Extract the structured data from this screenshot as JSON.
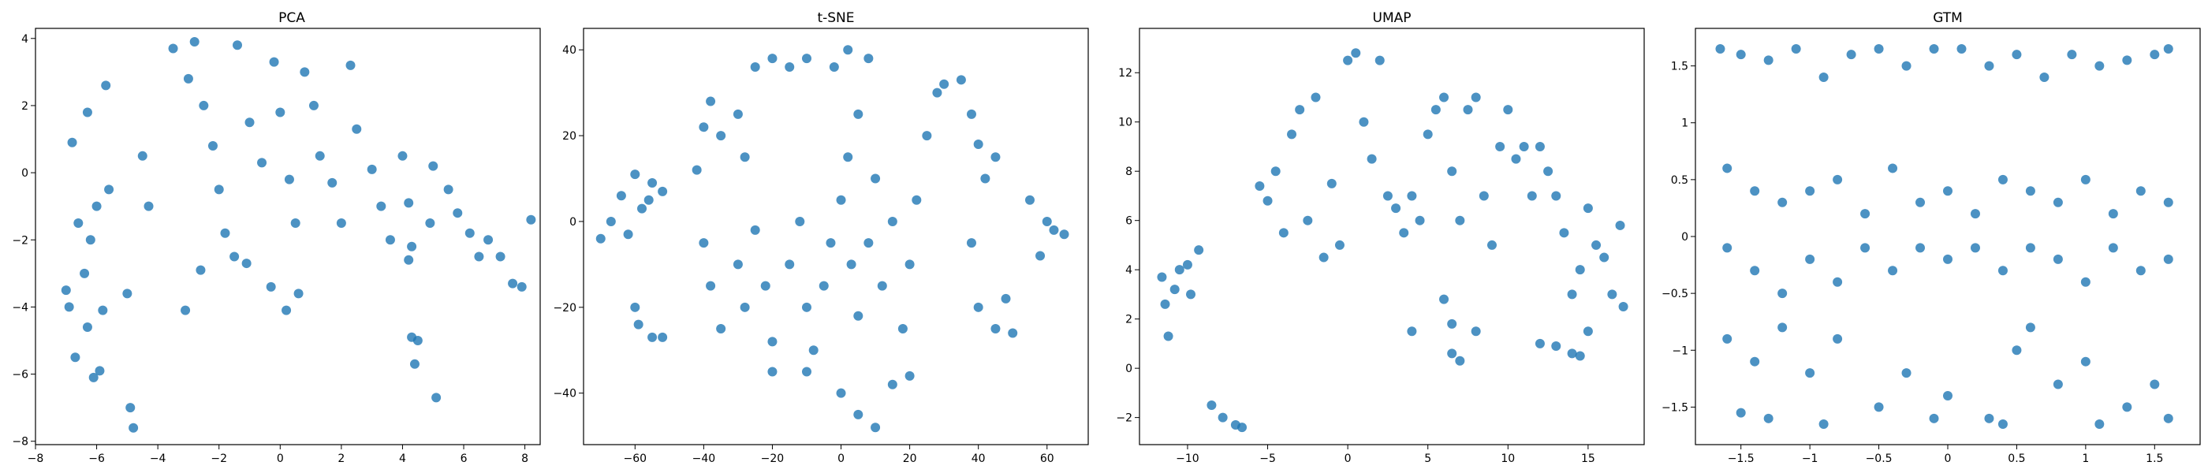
{
  "figure": {
    "background": "#ffffff"
  },
  "style": {
    "point_color": "#1f77b4",
    "point_opacity": 0.8,
    "frame_color": "#000000"
  },
  "chart_data": [
    {
      "type": "scatter",
      "title": "PCA",
      "xlabel": "",
      "ylabel": "",
      "xlim": [
        -8,
        8.5
      ],
      "ylim": [
        -8.1,
        4.3
      ],
      "xticks": [
        -8,
        -6,
        -4,
        -2,
        0,
        2,
        4,
        6,
        8
      ],
      "yticks": [
        -8,
        -6,
        -4,
        -2,
        0,
        2,
        4
      ],
      "grid": false,
      "legend": "none",
      "points": [
        [
          -6.9,
          -4
        ],
        [
          -7,
          -3.5
        ],
        [
          -6.7,
          -5.5
        ],
        [
          -6.1,
          -6.1
        ],
        [
          -5.9,
          -5.9
        ],
        [
          -6.4,
          -3
        ],
        [
          -6.2,
          -2
        ],
        [
          -6,
          -1
        ],
        [
          -5.6,
          -0.5
        ],
        [
          -6.8,
          0.9
        ],
        [
          -5.7,
          2.6
        ],
        [
          -6.3,
          1.8
        ],
        [
          -4.9,
          -7
        ],
        [
          -4.8,
          -7.6
        ],
        [
          -5,
          -3.6
        ],
        [
          -4.3,
          -1
        ],
        [
          -4.5,
          0.5
        ],
        [
          -3.5,
          3.7
        ],
        [
          -3,
          2.8
        ],
        [
          -2.8,
          3.9
        ],
        [
          -2.5,
          2
        ],
        [
          -2.2,
          0.8
        ],
        [
          -2,
          -0.5
        ],
        [
          -1.8,
          -1.8
        ],
        [
          -1.5,
          -2.5
        ],
        [
          -1.4,
          3.8
        ],
        [
          -1,
          1.5
        ],
        [
          -0.6,
          0.3
        ],
        [
          -0.2,
          3.3
        ],
        [
          0,
          1.8
        ],
        [
          0.3,
          -0.2
        ],
        [
          0.5,
          -1.5
        ],
        [
          0.8,
          3
        ],
        [
          1.1,
          2
        ],
        [
          1.3,
          0.5
        ],
        [
          1.7,
          -0.3
        ],
        [
          2,
          -1.5
        ],
        [
          2.3,
          3.2
        ],
        [
          2.5,
          1.3
        ],
        [
          3,
          0.1
        ],
        [
          3.3,
          -1
        ],
        [
          3.6,
          -2
        ],
        [
          4,
          0.5
        ],
        [
          4.2,
          -0.9
        ],
        [
          4.3,
          -2.2
        ],
        [
          4.2,
          -2.6
        ],
        [
          4.3,
          -4.9
        ],
        [
          4.5,
          -5
        ],
        [
          4.4,
          -5.7
        ],
        [
          5.1,
          -6.7
        ],
        [
          4.9,
          -1.5
        ],
        [
          5,
          0.2
        ],
        [
          5.5,
          -0.5
        ],
        [
          5.8,
          -1.2
        ],
        [
          6.2,
          -1.8
        ],
        [
          6.5,
          -2.5
        ],
        [
          6.8,
          -2
        ],
        [
          7.2,
          -2.5
        ],
        [
          7.6,
          -3.3
        ],
        [
          7.9,
          -3.4
        ],
        [
          8.2,
          -1.4
        ],
        [
          -3.1,
          -4.1
        ],
        [
          -2.6,
          -2.9
        ],
        [
          -1.1,
          -2.7
        ],
        [
          -0.3,
          -3.4
        ],
        [
          0.2,
          -4.1
        ],
        [
          0.6,
          -3.6
        ],
        [
          -6.3,
          -4.6
        ],
        [
          -5.8,
          -4.1
        ],
        [
          -6.6,
          -1.5
        ]
      ]
    },
    {
      "type": "scatter",
      "title": "t-SNE",
      "xlabel": "",
      "ylabel": "",
      "xlim": [
        -75,
        72
      ],
      "ylim": [
        -52,
        45
      ],
      "xticks": [
        -60,
        -40,
        -20,
        0,
        20,
        40,
        60
      ],
      "yticks": [
        -40,
        -20,
        0,
        20,
        40
      ],
      "grid": false,
      "legend": "none",
      "points": [
        [
          -70,
          -4
        ],
        [
          -67,
          0
        ],
        [
          -64,
          6
        ],
        [
          -60,
          11
        ],
        [
          -55,
          9
        ],
        [
          -58,
          3
        ],
        [
          -62,
          -3
        ],
        [
          -56,
          5
        ],
        [
          -52,
          7
        ],
        [
          -60,
          -20
        ],
        [
          -59,
          -24
        ],
        [
          -55,
          -27
        ],
        [
          -52,
          -27
        ],
        [
          -42,
          12
        ],
        [
          -40,
          22
        ],
        [
          -38,
          28
        ],
        [
          -35,
          20
        ],
        [
          -30,
          25
        ],
        [
          -28,
          15
        ],
        [
          -25,
          36
        ],
        [
          -20,
          38
        ],
        [
          -15,
          36
        ],
        [
          -10,
          38
        ],
        [
          -40,
          -5
        ],
        [
          -38,
          -15
        ],
        [
          -35,
          -25
        ],
        [
          -30,
          -10
        ],
        [
          -28,
          -20
        ],
        [
          -25,
          -2
        ],
        [
          -22,
          -15
        ],
        [
          -20,
          -28
        ],
        [
          -15,
          -10
        ],
        [
          -12,
          0
        ],
        [
          -10,
          -20
        ],
        [
          -8,
          -30
        ],
        [
          -5,
          -15
        ],
        [
          -3,
          -5
        ],
        [
          0,
          5
        ],
        [
          2,
          15
        ],
        [
          5,
          25
        ],
        [
          8,
          38
        ],
        [
          2,
          40
        ],
        [
          -2,
          36
        ],
        [
          3,
          -10
        ],
        [
          5,
          -22
        ],
        [
          8,
          -5
        ],
        [
          10,
          10
        ],
        [
          12,
          -15
        ],
        [
          15,
          0
        ],
        [
          18,
          -25
        ],
        [
          20,
          -10
        ],
        [
          22,
          5
        ],
        [
          25,
          20
        ],
        [
          28,
          30
        ],
        [
          30,
          32
        ],
        [
          35,
          33
        ],
        [
          38,
          25
        ],
        [
          40,
          18
        ],
        [
          42,
          10
        ],
        [
          45,
          15
        ],
        [
          38,
          -5
        ],
        [
          40,
          -20
        ],
        [
          45,
          -25
        ],
        [
          50,
          -26
        ],
        [
          48,
          -18
        ],
        [
          55,
          5
        ],
        [
          60,
          0
        ],
        [
          58,
          -8
        ],
        [
          62,
          -2
        ],
        [
          65,
          -3
        ],
        [
          0,
          -40
        ],
        [
          5,
          -45
        ],
        [
          10,
          -48
        ],
        [
          15,
          -38
        ],
        [
          20,
          -36
        ],
        [
          -10,
          -35
        ],
        [
          -20,
          -35
        ]
      ]
    },
    {
      "type": "scatter",
      "title": "UMAP",
      "xlabel": "",
      "ylabel": "",
      "xlim": [
        -13,
        18.5
      ],
      "ylim": [
        -3.1,
        13.8
      ],
      "xticks": [
        -10,
        -5,
        0,
        5,
        10,
        15
      ],
      "yticks": [
        -2,
        0,
        2,
        4,
        6,
        8,
        10,
        12
      ],
      "grid": false,
      "legend": "none",
      "points": [
        [
          -11.6,
          3.7
        ],
        [
          -11.4,
          2.6
        ],
        [
          -11.2,
          1.3
        ],
        [
          -10.8,
          3.2
        ],
        [
          -10.5,
          4
        ],
        [
          -10,
          4.2
        ],
        [
          -9.8,
          3
        ],
        [
          -9.3,
          4.8
        ],
        [
          -8.5,
          -1.5
        ],
        [
          -7.8,
          -2
        ],
        [
          -7,
          -2.3
        ],
        [
          -6.6,
          -2.4
        ],
        [
          -5.5,
          7.4
        ],
        [
          -5,
          6.8
        ],
        [
          -4.5,
          8
        ],
        [
          -4,
          5.5
        ],
        [
          -3.5,
          9.5
        ],
        [
          -3,
          10.5
        ],
        [
          -2.5,
          6
        ],
        [
          -2,
          11
        ],
        [
          -1.5,
          4.5
        ],
        [
          -1,
          7.5
        ],
        [
          -0.5,
          5
        ],
        [
          0,
          12.5
        ],
        [
          0.5,
          12.8
        ],
        [
          1,
          10
        ],
        [
          1.5,
          8.5
        ],
        [
          2,
          12.5
        ],
        [
          2.5,
          7
        ],
        [
          3,
          6.5
        ],
        [
          3.5,
          5.5
        ],
        [
          4,
          7
        ],
        [
          4.5,
          6
        ],
        [
          5,
          9.5
        ],
        [
          5.5,
          10.5
        ],
        [
          6,
          11
        ],
        [
          6.5,
          8
        ],
        [
          7,
          6
        ],
        [
          7.5,
          10.5
        ],
        [
          8,
          11
        ],
        [
          8.5,
          7
        ],
        [
          9,
          5
        ],
        [
          9.5,
          9
        ],
        [
          10,
          10.5
        ],
        [
          10.5,
          8.5
        ],
        [
          11,
          9
        ],
        [
          11.5,
          7
        ],
        [
          12,
          9
        ],
        [
          12.5,
          8
        ],
        [
          13,
          7
        ],
        [
          13.5,
          5.5
        ],
        [
          14,
          3
        ],
        [
          14.5,
          4
        ],
        [
          15,
          6.5
        ],
        [
          15.5,
          5
        ],
        [
          16,
          4.5
        ],
        [
          16.5,
          3
        ],
        [
          17,
          5.8
        ],
        [
          17.2,
          2.5
        ],
        [
          6.5,
          1.8
        ],
        [
          6,
          2.8
        ],
        [
          7,
          0.3
        ],
        [
          6.5,
          0.6
        ],
        [
          8,
          1.5
        ],
        [
          4,
          1.5
        ],
        [
          12,
          1
        ],
        [
          13,
          0.9
        ],
        [
          14,
          0.6
        ],
        [
          14.5,
          0.5
        ],
        [
          15,
          1.5
        ]
      ]
    },
    {
      "type": "scatter",
      "title": "GTM",
      "xlabel": "",
      "ylabel": "",
      "xlim": [
        -1.83,
        1.83
      ],
      "ylim": [
        -1.83,
        1.83
      ],
      "xticks": [
        -1.5,
        -1.0,
        -0.5,
        0.0,
        0.5,
        1.0,
        1.5
      ],
      "yticks": [
        -1.5,
        -1.0,
        -0.5,
        0.0,
        0.5,
        1.0,
        1.5
      ],
      "grid": false,
      "legend": "none",
      "points": [
        [
          -1.65,
          1.65
        ],
        [
          -1.5,
          1.6
        ],
        [
          -1.3,
          1.55
        ],
        [
          -1.1,
          1.65
        ],
        [
          -0.9,
          1.4
        ],
        [
          -0.7,
          1.6
        ],
        [
          -0.5,
          1.65
        ],
        [
          -0.3,
          1.5
        ],
        [
          -0.1,
          1.65
        ],
        [
          0.1,
          1.65
        ],
        [
          0.3,
          1.5
        ],
        [
          0.5,
          1.6
        ],
        [
          0.7,
          1.4
        ],
        [
          0.9,
          1.6
        ],
        [
          1.1,
          1.5
        ],
        [
          1.3,
          1.55
        ],
        [
          1.5,
          1.6
        ],
        [
          1.6,
          1.65
        ],
        [
          -1.6,
          0.6
        ],
        [
          -1.4,
          0.4
        ],
        [
          -1.2,
          0.3
        ],
        [
          -1,
          0.4
        ],
        [
          -0.8,
          0.5
        ],
        [
          -0.6,
          0.2
        ],
        [
          -0.4,
          0.6
        ],
        [
          -0.2,
          0.3
        ],
        [
          0,
          0.4
        ],
        [
          0.2,
          0.2
        ],
        [
          0.4,
          0.5
        ],
        [
          0.6,
          0.4
        ],
        [
          0.8,
          0.3
        ],
        [
          1,
          0.5
        ],
        [
          1.2,
          0.2
        ],
        [
          1.4,
          0.4
        ],
        [
          1.6,
          0.3
        ],
        [
          -1.6,
          -0.1
        ],
        [
          -1.4,
          -0.3
        ],
        [
          -1.2,
          -0.5
        ],
        [
          -1,
          -0.2
        ],
        [
          -0.8,
          -0.4
        ],
        [
          -0.6,
          -0.1
        ],
        [
          -0.4,
          -0.3
        ],
        [
          -0.2,
          -0.1
        ],
        [
          0,
          -0.2
        ],
        [
          0.2,
          -0.1
        ],
        [
          0.4,
          -0.3
        ],
        [
          0.6,
          -0.1
        ],
        [
          0.8,
          -0.2
        ],
        [
          1,
          -0.4
        ],
        [
          1.2,
          -0.1
        ],
        [
          1.4,
          -0.3
        ],
        [
          1.6,
          -0.2
        ],
        [
          -1.6,
          -0.9
        ],
        [
          -1.4,
          -1.1
        ],
        [
          -1.2,
          -0.8
        ],
        [
          -1,
          -1.2
        ],
        [
          -0.8,
          -0.9
        ],
        [
          -0.5,
          -1.5
        ],
        [
          -0.3,
          -1.2
        ],
        [
          0,
          -1.4
        ],
        [
          0.3,
          -1.6
        ],
        [
          0.5,
          -1
        ],
        [
          0.6,
          -0.8
        ],
        [
          0.8,
          -1.3
        ],
        [
          1,
          -1.1
        ],
        [
          1.3,
          -1.5
        ],
        [
          1.5,
          -1.3
        ],
        [
          1.6,
          -1.6
        ],
        [
          -1.5,
          -1.55
        ],
        [
          -1.3,
          -1.6
        ],
        [
          -0.9,
          -1.65
        ],
        [
          -0.1,
          -1.6
        ],
        [
          0.4,
          -1.65
        ],
        [
          1.1,
          -1.65
        ]
      ]
    }
  ]
}
